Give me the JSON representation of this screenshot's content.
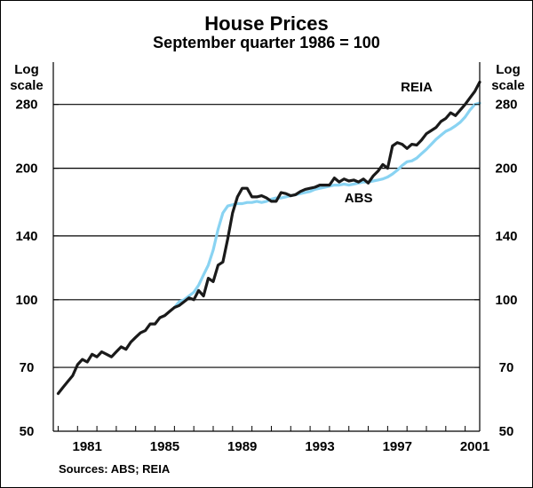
{
  "chart_data": {
    "type": "line",
    "title": "House Prices",
    "subtitle": "September quarter 1986 = 100",
    "ylabel_left": "Log scale",
    "ylabel_right": "Log scale",
    "yscale": "log",
    "ylim": [
      50,
      350
    ],
    "yticks": [
      50,
      70,
      100,
      140,
      200,
      280
    ],
    "xlim": [
      1979.75,
      2001.75
    ],
    "xticks": [
      1981,
      1985,
      1989,
      1993,
      1997,
      2001
    ],
    "grid": true,
    "source": "Sources: ABS; REIA",
    "series": [
      {
        "name": "REIA",
        "color": "#1a1a1a",
        "label_x": 1998.5,
        "label_y": 300,
        "points": [
          [
            1980.0,
            61
          ],
          [
            1980.25,
            63
          ],
          [
            1980.5,
            65
          ],
          [
            1980.75,
            67
          ],
          [
            1981.0,
            71
          ],
          [
            1981.25,
            73
          ],
          [
            1981.5,
            72
          ],
          [
            1981.75,
            75
          ],
          [
            1982.0,
            74
          ],
          [
            1982.25,
            76
          ],
          [
            1982.5,
            75
          ],
          [
            1982.75,
            74
          ],
          [
            1983.0,
            76
          ],
          [
            1983.25,
            78
          ],
          [
            1983.5,
            77
          ],
          [
            1983.75,
            80
          ],
          [
            1984.0,
            82
          ],
          [
            1984.25,
            84
          ],
          [
            1984.5,
            85
          ],
          [
            1984.75,
            88
          ],
          [
            1985.0,
            88
          ],
          [
            1985.25,
            91
          ],
          [
            1985.5,
            92
          ],
          [
            1985.75,
            94
          ],
          [
            1986.0,
            96
          ],
          [
            1986.25,
            97
          ],
          [
            1986.5,
            99
          ],
          [
            1986.75,
            101
          ],
          [
            1987.0,
            100
          ],
          [
            1987.25,
            105
          ],
          [
            1987.5,
            102
          ],
          [
            1987.75,
            112
          ],
          [
            1988.0,
            110
          ],
          [
            1988.25,
            120
          ],
          [
            1988.5,
            122
          ],
          [
            1988.75,
            138
          ],
          [
            1989.0,
            158
          ],
          [
            1989.25,
            172
          ],
          [
            1989.5,
            180
          ],
          [
            1989.75,
            180
          ],
          [
            1990.0,
            172
          ],
          [
            1990.25,
            172
          ],
          [
            1990.5,
            173
          ],
          [
            1990.75,
            171
          ],
          [
            1991.0,
            168
          ],
          [
            1991.25,
            168
          ],
          [
            1991.5,
            176
          ],
          [
            1991.75,
            175
          ],
          [
            1992.0,
            173
          ],
          [
            1992.25,
            174
          ],
          [
            1992.5,
            177
          ],
          [
            1992.75,
            179
          ],
          [
            1993.0,
            180
          ],
          [
            1993.25,
            181
          ],
          [
            1993.5,
            183
          ],
          [
            1993.75,
            183
          ],
          [
            1994.0,
            183
          ],
          [
            1994.25,
            190
          ],
          [
            1994.5,
            186
          ],
          [
            1994.75,
            189
          ],
          [
            1995.0,
            187
          ],
          [
            1995.25,
            188
          ],
          [
            1995.5,
            186
          ],
          [
            1995.75,
            189
          ],
          [
            1996.0,
            185
          ],
          [
            1996.25,
            192
          ],
          [
            1996.5,
            197
          ],
          [
            1996.75,
            204
          ],
          [
            1997.0,
            200
          ],
          [
            1997.25,
            225
          ],
          [
            1997.5,
            229
          ],
          [
            1997.75,
            227
          ],
          [
            1998.0,
            222
          ],
          [
            1998.25,
            227
          ],
          [
            1998.5,
            226
          ],
          [
            1998.75,
            232
          ],
          [
            1999.0,
            240
          ],
          [
            1999.25,
            244
          ],
          [
            1999.5,
            248
          ],
          [
            1999.75,
            256
          ],
          [
            2000.0,
            260
          ],
          [
            2000.25,
            268
          ],
          [
            2000.5,
            264
          ],
          [
            2000.75,
            272
          ],
          [
            2001.0,
            280
          ],
          [
            2001.25,
            290
          ],
          [
            2001.5,
            300
          ],
          [
            2001.75,
            315
          ]
        ]
      },
      {
        "name": "ABS",
        "color": "#89d3f2",
        "label_x": 1995.5,
        "label_y": 167,
        "points": [
          [
            1986.0,
            96
          ],
          [
            1986.25,
            99
          ],
          [
            1986.5,
            100
          ],
          [
            1986.75,
            102
          ],
          [
            1987.0,
            104
          ],
          [
            1987.25,
            108
          ],
          [
            1987.5,
            114
          ],
          [
            1987.75,
            120
          ],
          [
            1988.0,
            130
          ],
          [
            1988.25,
            145
          ],
          [
            1988.5,
            158
          ],
          [
            1988.75,
            164
          ],
          [
            1989.0,
            165
          ],
          [
            1989.25,
            166
          ],
          [
            1989.5,
            166
          ],
          [
            1989.75,
            167
          ],
          [
            1990.0,
            167
          ],
          [
            1990.25,
            168
          ],
          [
            1990.5,
            167
          ],
          [
            1990.75,
            168
          ],
          [
            1991.0,
            170
          ],
          [
            1991.25,
            171
          ],
          [
            1991.5,
            171
          ],
          [
            1991.75,
            172
          ],
          [
            1992.0,
            173
          ],
          [
            1992.25,
            174
          ],
          [
            1992.5,
            175
          ],
          [
            1992.75,
            176
          ],
          [
            1993.0,
            177
          ],
          [
            1993.25,
            179
          ],
          [
            1993.5,
            180
          ],
          [
            1993.75,
            181
          ],
          [
            1994.0,
            182
          ],
          [
            1994.25,
            183
          ],
          [
            1994.5,
            183
          ],
          [
            1994.75,
            184
          ],
          [
            1995.0,
            183
          ],
          [
            1995.25,
            184
          ],
          [
            1995.5,
            185
          ],
          [
            1995.75,
            186
          ],
          [
            1996.0,
            186
          ],
          [
            1996.25,
            187
          ],
          [
            1996.5,
            188
          ],
          [
            1996.75,
            189
          ],
          [
            1997.0,
            191
          ],
          [
            1997.25,
            194
          ],
          [
            1997.5,
            198
          ],
          [
            1997.75,
            203
          ],
          [
            1998.0,
            207
          ],
          [
            1998.25,
            208
          ],
          [
            1998.5,
            211
          ],
          [
            1998.75,
            216
          ],
          [
            1999.0,
            221
          ],
          [
            1999.25,
            227
          ],
          [
            1999.5,
            233
          ],
          [
            1999.75,
            238
          ],
          [
            2000.0,
            243
          ],
          [
            2000.25,
            246
          ],
          [
            2000.5,
            250
          ],
          [
            2000.75,
            255
          ],
          [
            2001.0,
            262
          ],
          [
            2001.25,
            272
          ],
          [
            2001.5,
            280
          ],
          [
            2001.75,
            282
          ]
        ]
      }
    ]
  }
}
